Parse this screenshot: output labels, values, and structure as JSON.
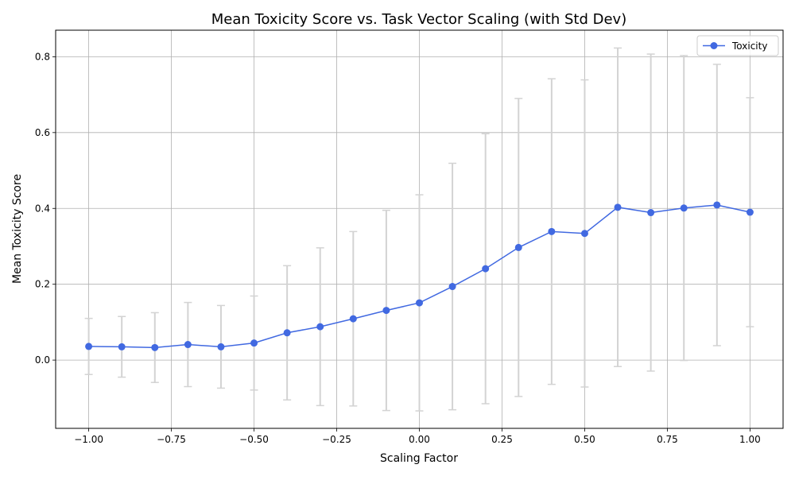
{
  "chart_data": {
    "type": "line",
    "title": "Mean Toxicity Score vs. Task Vector Scaling (with Std Dev)",
    "xlabel": "Scaling Factor",
    "ylabel": "Mean Toxicity Score",
    "xlim": [
      -1.1,
      1.1
    ],
    "ylim": [
      -0.18,
      0.87
    ],
    "x_ticks": [
      -1.0,
      -0.75,
      -0.5,
      -0.25,
      0.0,
      0.25,
      0.5,
      0.75,
      1.0
    ],
    "x_tick_labels": [
      "−1.00",
      "−0.75",
      "−0.50",
      "−0.25",
      "0.00",
      "0.25",
      "0.50",
      "0.75",
      "1.00"
    ],
    "y_ticks": [
      0.0,
      0.2,
      0.4,
      0.6,
      0.8
    ],
    "y_tick_labels": [
      "0.0",
      "0.2",
      "0.4",
      "0.6",
      "0.8"
    ],
    "grid": true,
    "legend_position": "top-right",
    "series": [
      {
        "name": "Toxicity",
        "color": "#4169e1",
        "errorbar_color": "#d3d3d3",
        "x": [
          -1.0,
          -0.9,
          -0.8,
          -0.7,
          -0.6,
          -0.5,
          -0.4,
          -0.3,
          -0.2,
          -0.1,
          0.0,
          0.1,
          0.2,
          0.3,
          0.4,
          0.5,
          0.6,
          0.7,
          0.8,
          0.9,
          1.0
        ],
        "y": [
          0.036,
          0.035,
          0.033,
          0.041,
          0.035,
          0.045,
          0.072,
          0.088,
          0.109,
          0.131,
          0.151,
          0.194,
          0.241,
          0.297,
          0.339,
          0.334,
          0.403,
          0.389,
          0.401,
          0.409,
          0.39
        ],
        "std": [
          0.074,
          0.08,
          0.092,
          0.111,
          0.109,
          0.124,
          0.177,
          0.208,
          0.23,
          0.264,
          0.285,
          0.325,
          0.356,
          0.393,
          0.403,
          0.405,
          0.42,
          0.418,
          0.402,
          0.371,
          0.302
        ]
      }
    ]
  }
}
